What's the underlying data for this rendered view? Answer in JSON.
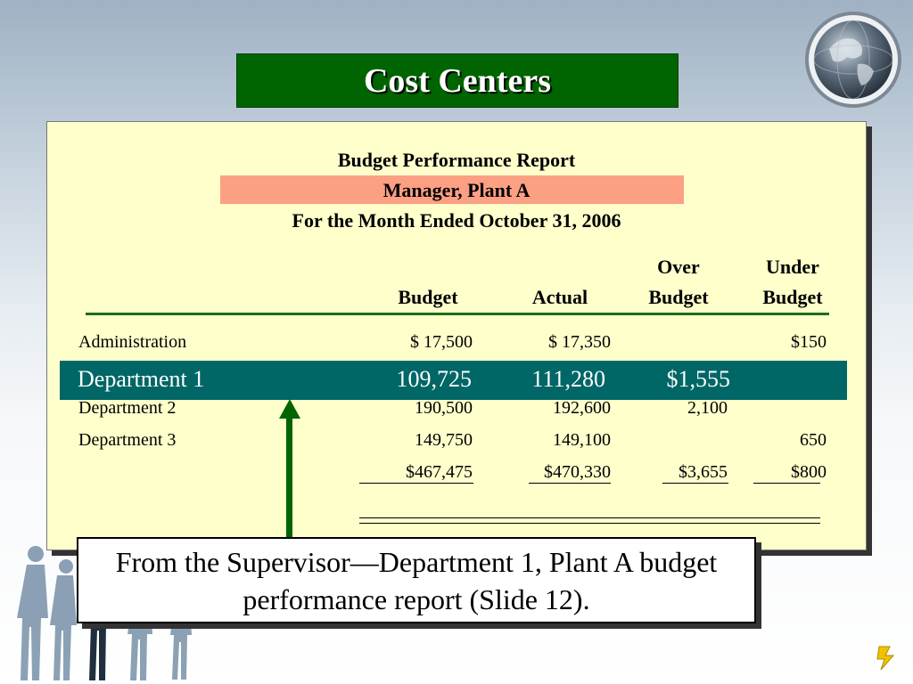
{
  "slide": {
    "title": "Cost Centers",
    "callout": "From the Supervisor—Department 1, Plant A budget performance report (Slide 12)."
  },
  "report": {
    "heading": "Budget Performance Report",
    "subheading": "Manager, Plant A",
    "period": "For the Month Ended October 31, 2006",
    "columns": {
      "budget": "Budget",
      "actual": "Actual",
      "over_top": "Over",
      "over_bottom": "Budget",
      "under_top": "Under",
      "under_bottom": "Budget"
    },
    "rows": [
      {
        "name": "Administration",
        "budget": "$  17,500",
        "actual": "$  17,350",
        "over": "",
        "under": "$150"
      },
      {
        "name": "Department 1",
        "budget": "109,725",
        "actual": "111,280",
        "over": "$1,555",
        "under": ""
      },
      {
        "name": "Department 2",
        "budget": "190,500",
        "actual": "192,600",
        "over": "2,100",
        "under": ""
      },
      {
        "name": "Department 3",
        "budget": "149,750",
        "actual": "149,100",
        "over": "",
        "under": "650"
      }
    ],
    "totals": {
      "budget": "$467,475",
      "actual": "$470,330",
      "over": "$3,655",
      "under": "$800"
    }
  },
  "colors": {
    "title_bg": "#006400",
    "panel_bg": "#ffffcc",
    "subheading_band": "#fca084",
    "highlight_band": "#006666",
    "arrow": "#006400"
  },
  "icons": [
    "globe-icon",
    "people-silhouettes",
    "lightning-icon"
  ]
}
